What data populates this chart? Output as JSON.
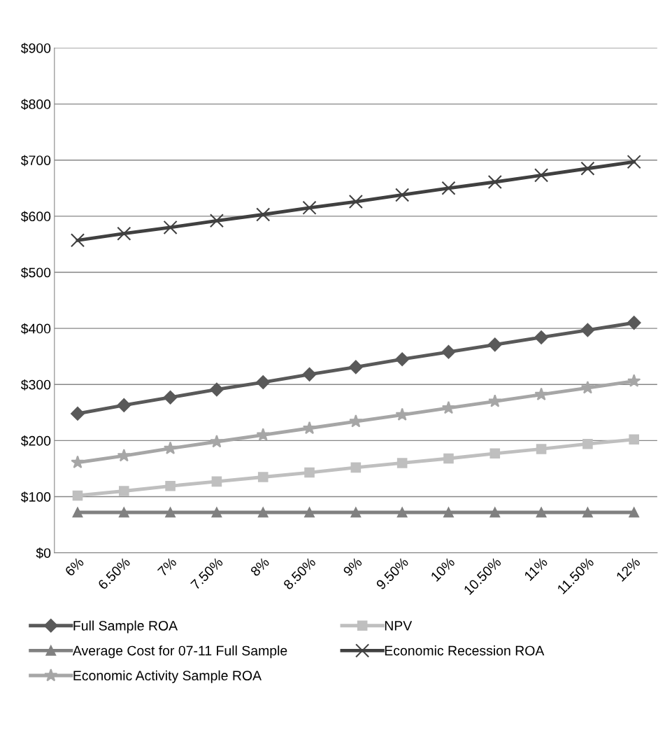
{
  "chart_data": {
    "type": "line",
    "categories": [
      "6%",
      "6.50%",
      "7%",
      "7.50%",
      "8%",
      "8.50%",
      "9%",
      "9.50%",
      "10%",
      "10.50%",
      "11%",
      "11.50%",
      "12%"
    ],
    "series": [
      {
        "name": "Full Sample ROA",
        "color": "#595959",
        "marker": "diamond",
        "values": [
          248,
          263,
          277,
          291,
          304,
          318,
          331,
          345,
          358,
          371,
          384,
          397,
          410
        ]
      },
      {
        "name": "NPV",
        "color": "#bfbfbf",
        "marker": "square",
        "values": [
          102,
          110,
          119,
          127,
          135,
          143,
          152,
          160,
          168,
          177,
          185,
          194,
          202
        ]
      },
      {
        "name": "Average Cost for 07-11 Full Sample",
        "color": "#808080",
        "marker": "triangle",
        "values": [
          72,
          72,
          72,
          72,
          72,
          72,
          72,
          72,
          72,
          72,
          72,
          72,
          72
        ]
      },
      {
        "name": "Economic Recession ROA",
        "color": "#404040",
        "marker": "cross",
        "values": [
          557,
          569,
          580,
          592,
          603,
          615,
          626,
          638,
          650,
          661,
          673,
          685,
          697
        ]
      },
      {
        "name": "Economic Activity Sample ROA",
        "color": "#a6a6a6",
        "marker": "star",
        "values": [
          161,
          173,
          186,
          198,
          210,
          222,
          234,
          246,
          258,
          270,
          282,
          294,
          306
        ]
      }
    ],
    "ylim": [
      0,
      900
    ],
    "yticks": [
      {
        "value": 0,
        "label": "$0"
      },
      {
        "value": 100,
        "label": "$100"
      },
      {
        "value": 200,
        "label": "$200"
      },
      {
        "value": 300,
        "label": "$300"
      },
      {
        "value": 400,
        "label": "$400"
      },
      {
        "value": 500,
        "label": "$500"
      },
      {
        "value": 600,
        "label": "$600"
      },
      {
        "value": 700,
        "label": "$700"
      },
      {
        "value": 800,
        "label": "$800"
      },
      {
        "value": 900,
        "label": "$900"
      }
    ],
    "grid": "y",
    "legend": "bottom"
  }
}
